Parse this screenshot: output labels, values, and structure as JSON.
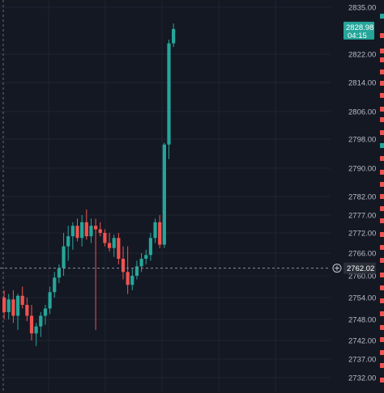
{
  "chart_data": {
    "type": "candlestick",
    "y_axis": {
      "position": "right",
      "ticks": [
        2835.0,
        2822.0,
        2814.0,
        2806.0,
        2798.0,
        2790.0,
        2782.0,
        2777.0,
        2772.0,
        2766.0,
        2760.0,
        2754.0,
        2748.0,
        2742.0,
        2737.0,
        2732.0
      ],
      "tick_labels": [
        "2835.00",
        "2822.00",
        "2814.00",
        "2806.00",
        "2798.00",
        "2790.00",
        "2782.00",
        "2777.00",
        "2772.00",
        "2766.00",
        "2760.00",
        "2754.00",
        "2748.00",
        "2742.00",
        "2737.00",
        "2732.00"
      ],
      "ylim": [
        2729.5,
        2837.5
      ]
    },
    "grid": true,
    "colors": {
      "background": "#141823",
      "up": "#26a69a",
      "down": "#ef5350",
      "grid": "#1f2433",
      "crosshair": "#8a8e99",
      "axis_text": "#b8bcc8",
      "badge_price": "#26a69a",
      "badge_crosshair": "#2a2e39"
    },
    "last_price": {
      "price": "2828.98",
      "countdown": "04:15",
      "value": 2828.98
    },
    "crosshair": {
      "price": "2762.02",
      "value": 2762.02,
      "icon": "plus-circle-icon"
    },
    "candles": [
      {
        "o": 2754.0,
        "h": 2756.0,
        "l": 2748.0,
        "c": 2750.0
      },
      {
        "o": 2750.0,
        "h": 2755.0,
        "l": 2748.0,
        "c": 2753.5
      },
      {
        "o": 2753.5,
        "h": 2756.0,
        "l": 2747.0,
        "c": 2749.0
      },
      {
        "o": 2749.0,
        "h": 2755.0,
        "l": 2745.0,
        "c": 2754.5
      },
      {
        "o": 2754.5,
        "h": 2757.0,
        "l": 2751.0,
        "c": 2752.0
      },
      {
        "o": 2752.0,
        "h": 2754.0,
        "l": 2747.5,
        "c": 2749.0
      },
      {
        "o": 2749.0,
        "h": 2752.0,
        "l": 2742.0,
        "c": 2744.0
      },
      {
        "o": 2744.0,
        "h": 2747.0,
        "l": 2740.5,
        "c": 2746.0
      },
      {
        "o": 2746.0,
        "h": 2750.0,
        "l": 2743.0,
        "c": 2749.0
      },
      {
        "o": 2749.0,
        "h": 2752.0,
        "l": 2746.5,
        "c": 2751.0
      },
      {
        "o": 2751.0,
        "h": 2757.0,
        "l": 2749.5,
        "c": 2755.5
      },
      {
        "o": 2755.5,
        "h": 2761.0,
        "l": 2754.0,
        "c": 2759.5
      },
      {
        "o": 2759.5,
        "h": 2763.0,
        "l": 2758.0,
        "c": 2762.0
      },
      {
        "o": 2762.0,
        "h": 2772.0,
        "l": 2760.0,
        "c": 2768.0
      },
      {
        "o": 2768.0,
        "h": 2774.0,
        "l": 2764.0,
        "c": 2771.0
      },
      {
        "o": 2771.0,
        "h": 2775.0,
        "l": 2767.0,
        "c": 2774.0
      },
      {
        "o": 2774.0,
        "h": 2776.0,
        "l": 2769.5,
        "c": 2770.5
      },
      {
        "o": 2770.5,
        "h": 2777.0,
        "l": 2768.0,
        "c": 2775.0
      },
      {
        "o": 2775.0,
        "h": 2778.5,
        "l": 2770.0,
        "c": 2771.0
      },
      {
        "o": 2771.0,
        "h": 2776.0,
        "l": 2769.0,
        "c": 2774.0
      },
      {
        "o": 2774.0,
        "h": 2776.0,
        "l": 2745.0,
        "c": 2773.0
      },
      {
        "o": 2773.0,
        "h": 2775.0,
        "l": 2771.0,
        "c": 2772.0
      },
      {
        "o": 2772.0,
        "h": 2773.0,
        "l": 2768.0,
        "c": 2769.0
      },
      {
        "o": 2769.0,
        "h": 2772.0,
        "l": 2766.5,
        "c": 2767.5
      },
      {
        "o": 2767.5,
        "h": 2771.5,
        "l": 2765.0,
        "c": 2770.5
      },
      {
        "o": 2770.5,
        "h": 2772.0,
        "l": 2763.0,
        "c": 2764.5
      },
      {
        "o": 2764.5,
        "h": 2768.0,
        "l": 2759.0,
        "c": 2761.0
      },
      {
        "o": 2761.0,
        "h": 2768.0,
        "l": 2755.0,
        "c": 2757.5
      },
      {
        "o": 2757.5,
        "h": 2762.0,
        "l": 2756.0,
        "c": 2760.0
      },
      {
        "o": 2760.0,
        "h": 2764.0,
        "l": 2759.0,
        "c": 2762.5
      },
      {
        "o": 2762.5,
        "h": 2766.0,
        "l": 2761.0,
        "c": 2764.5
      },
      {
        "o": 2764.5,
        "h": 2767.0,
        "l": 2763.0,
        "c": 2765.5
      },
      {
        "o": 2765.5,
        "h": 2772.0,
        "l": 2764.0,
        "c": 2770.5
      },
      {
        "o": 2770.5,
        "h": 2776.0,
        "l": 2769.0,
        "c": 2775.0
      },
      {
        "o": 2775.0,
        "h": 2777.0,
        "l": 2767.5,
        "c": 2768.5
      },
      {
        "o": 2768.5,
        "h": 2797.0,
        "l": 2767.5,
        "c": 2796.5
      },
      {
        "o": 2796.5,
        "h": 2826.0,
        "l": 2792.5,
        "c": 2825.0
      },
      {
        "o": 2825.0,
        "h": 2830.5,
        "l": 2824.0,
        "c": 2828.98
      }
    ]
  }
}
